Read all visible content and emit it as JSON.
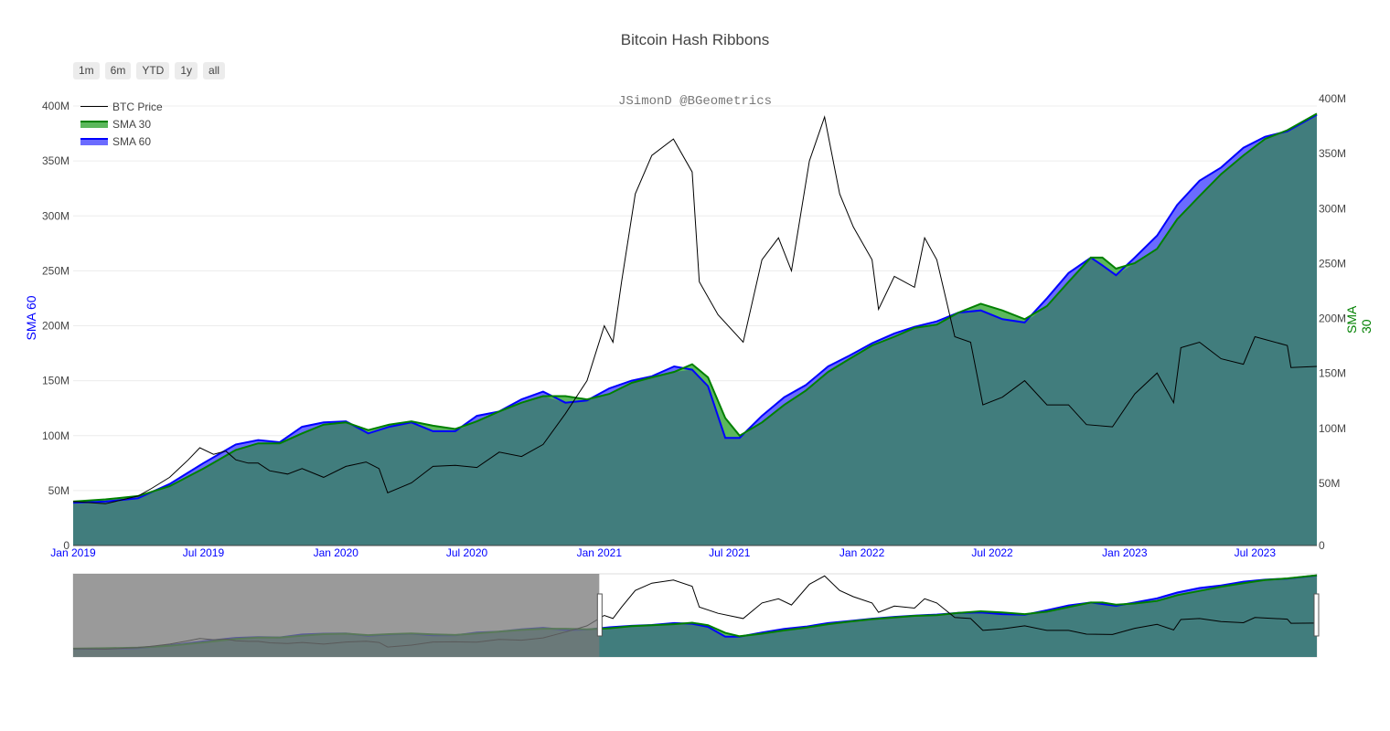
{
  "title": "Bitcoin Hash Ribbons",
  "watermark": "JSimonD @BGeometrics",
  "range_buttons": [
    "1m",
    "6m",
    "YTD",
    "1y",
    "all"
  ],
  "legend": [
    {
      "name": "BTC Price",
      "color": "#000000"
    },
    {
      "name": "SMA 30",
      "color": "#008000"
    },
    {
      "name": "SMA 60",
      "color": "#0000ff"
    }
  ],
  "colors": {
    "area_fill": "#417d7d",
    "sma30_line": "#008000",
    "sma60_line": "#0000ff",
    "sma30_ribbon": "#5cb85c",
    "sma60_ribbon": "#6b6bff",
    "price_line": "#000000",
    "x_tick": "#0000ff",
    "y_tick": "#444444"
  },
  "chart_data": {
    "type": "area",
    "title": "Bitcoin Hash Ribbons",
    "x_range": [
      "2019-01-01",
      "2023-09-25"
    ],
    "x_ticks": [
      "Jan 2019",
      "Jul 2019",
      "Jan 2020",
      "Jul 2020",
      "Jan 2021",
      "Jul 2021",
      "Jan 2022",
      "Jul 2022",
      "Jan 2023",
      "Jul 2023"
    ],
    "y_left": {
      "label": "SMA 60",
      "range": [
        0,
        400000000
      ],
      "ticks": [
        "0",
        "50M",
        "100M",
        "150M",
        "200M",
        "250M",
        "300M",
        "350M",
        "400M"
      ]
    },
    "y_right": {
      "label": "SMA 30",
      "range": [
        0,
        400000000
      ],
      "ticks": [
        "0",
        "50M",
        "100M",
        "150M",
        "200M",
        "250M",
        "300M",
        "350M",
        "400M"
      ]
    },
    "grid": true,
    "legend_position": "top-left",
    "rangeslider": {
      "visible": true,
      "selected": [
        "2021-01-01",
        "2023-09-25"
      ]
    },
    "series": [
      {
        "name": "SMA 30",
        "axis": "right",
        "points": [
          [
            "2019-01-01",
            40000000
          ],
          [
            "2019-02-15",
            42000000
          ],
          [
            "2019-04-01",
            45000000
          ],
          [
            "2019-05-15",
            54000000
          ],
          [
            "2019-07-01",
            70000000
          ],
          [
            "2019-08-15",
            87000000
          ],
          [
            "2019-09-15",
            93000000
          ],
          [
            "2019-10-15",
            93000000
          ],
          [
            "2019-11-15",
            102000000
          ],
          [
            "2019-12-15",
            110000000
          ],
          [
            "2020-01-15",
            112000000
          ],
          [
            "2020-02-15",
            105000000
          ],
          [
            "2020-03-15",
            110000000
          ],
          [
            "2020-04-15",
            113000000
          ],
          [
            "2020-05-15",
            109000000
          ],
          [
            "2020-06-15",
            106000000
          ],
          [
            "2020-07-15",
            113000000
          ],
          [
            "2020-08-15",
            122000000
          ],
          [
            "2020-09-15",
            130000000
          ],
          [
            "2020-10-15",
            136000000
          ],
          [
            "2020-11-15",
            136000000
          ],
          [
            "2020-12-15",
            133000000
          ],
          [
            "2021-01-15",
            138000000
          ],
          [
            "2021-02-15",
            148000000
          ],
          [
            "2021-03-15",
            153000000
          ],
          [
            "2021-04-15",
            158000000
          ],
          [
            "2021-05-10",
            165000000
          ],
          [
            "2021-06-01",
            153000000
          ],
          [
            "2021-06-25",
            116000000
          ],
          [
            "2021-07-15",
            100000000
          ],
          [
            "2021-08-15",
            112000000
          ],
          [
            "2021-09-15",
            128000000
          ],
          [
            "2021-10-15",
            141000000
          ],
          [
            "2021-11-15",
            158000000
          ],
          [
            "2021-12-15",
            170000000
          ],
          [
            "2022-01-15",
            182000000
          ],
          [
            "2022-02-15",
            190000000
          ],
          [
            "2022-03-15",
            198000000
          ],
          [
            "2022-04-15",
            201000000
          ],
          [
            "2022-05-15",
            212000000
          ],
          [
            "2022-06-15",
            220000000
          ],
          [
            "2022-07-15",
            214000000
          ],
          [
            "2022-08-15",
            206000000
          ],
          [
            "2022-09-15",
            218000000
          ],
          [
            "2022-10-15",
            240000000
          ],
          [
            "2022-11-15",
            262000000
          ],
          [
            "2022-12-01",
            262000000
          ],
          [
            "2022-12-20",
            252000000
          ],
          [
            "2023-01-15",
            257000000
          ],
          [
            "2023-02-15",
            270000000
          ],
          [
            "2023-03-15",
            297000000
          ],
          [
            "2023-04-15",
            318000000
          ],
          [
            "2023-05-15",
            338000000
          ],
          [
            "2023-06-15",
            355000000
          ],
          [
            "2023-07-15",
            370000000
          ],
          [
            "2023-08-15",
            378000000
          ],
          [
            "2023-09-25",
            393000000
          ]
        ]
      },
      {
        "name": "SMA 60",
        "axis": "left",
        "points": [
          [
            "2019-01-01",
            39000000
          ],
          [
            "2019-02-15",
            40000000
          ],
          [
            "2019-04-01",
            43000000
          ],
          [
            "2019-05-15",
            56000000
          ],
          [
            "2019-07-01",
            75000000
          ],
          [
            "2019-08-15",
            92000000
          ],
          [
            "2019-09-15",
            96000000
          ],
          [
            "2019-10-15",
            94000000
          ],
          [
            "2019-11-15",
            108000000
          ],
          [
            "2019-12-15",
            112000000
          ],
          [
            "2020-01-15",
            113000000
          ],
          [
            "2020-02-15",
            102000000
          ],
          [
            "2020-03-15",
            108000000
          ],
          [
            "2020-04-15",
            112000000
          ],
          [
            "2020-05-15",
            104000000
          ],
          [
            "2020-06-15",
            104000000
          ],
          [
            "2020-07-15",
            118000000
          ],
          [
            "2020-08-15",
            122000000
          ],
          [
            "2020-09-15",
            133000000
          ],
          [
            "2020-10-15",
            140000000
          ],
          [
            "2020-11-15",
            130000000
          ],
          [
            "2020-12-15",
            132000000
          ],
          [
            "2021-01-15",
            143000000
          ],
          [
            "2021-02-15",
            150000000
          ],
          [
            "2021-03-15",
            154000000
          ],
          [
            "2021-04-15",
            163000000
          ],
          [
            "2021-05-10",
            160000000
          ],
          [
            "2021-06-01",
            145000000
          ],
          [
            "2021-06-25",
            98000000
          ],
          [
            "2021-07-15",
            98000000
          ],
          [
            "2021-08-15",
            118000000
          ],
          [
            "2021-09-15",
            135000000
          ],
          [
            "2021-10-15",
            146000000
          ],
          [
            "2021-11-15",
            163000000
          ],
          [
            "2021-12-15",
            173000000
          ],
          [
            "2022-01-15",
            184000000
          ],
          [
            "2022-02-15",
            193000000
          ],
          [
            "2022-03-15",
            199000000
          ],
          [
            "2022-04-15",
            204000000
          ],
          [
            "2022-05-15",
            212000000
          ],
          [
            "2022-06-15",
            214000000
          ],
          [
            "2022-07-15",
            206000000
          ],
          [
            "2022-08-15",
            203000000
          ],
          [
            "2022-09-15",
            225000000
          ],
          [
            "2022-10-15",
            248000000
          ],
          [
            "2022-11-15",
            262000000
          ],
          [
            "2022-12-01",
            255000000
          ],
          [
            "2022-12-20",
            246000000
          ],
          [
            "2023-01-15",
            262000000
          ],
          [
            "2023-02-15",
            282000000
          ],
          [
            "2023-03-15",
            310000000
          ],
          [
            "2023-04-15",
            332000000
          ],
          [
            "2023-05-15",
            344000000
          ],
          [
            "2023-06-15",
            362000000
          ],
          [
            "2023-07-15",
            372000000
          ],
          [
            "2023-08-15",
            377000000
          ],
          [
            "2023-09-25",
            392000000
          ]
        ]
      },
      {
        "name": "BTC Price",
        "axis": "left",
        "points": [
          [
            "2019-01-01",
            40000000
          ],
          [
            "2019-02-15",
            38000000
          ],
          [
            "2019-04-01",
            45000000
          ],
          [
            "2019-04-20",
            52000000
          ],
          [
            "2019-05-15",
            62000000
          ],
          [
            "2019-06-10",
            78000000
          ],
          [
            "2019-06-26",
            89000000
          ],
          [
            "2019-07-15",
            83000000
          ],
          [
            "2019-08-01",
            86000000
          ],
          [
            "2019-08-15",
            78000000
          ],
          [
            "2019-09-01",
            75000000
          ],
          [
            "2019-09-15",
            75000000
          ],
          [
            "2019-10-01",
            68000000
          ],
          [
            "2019-10-26",
            65000000
          ],
          [
            "2019-11-15",
            70000000
          ],
          [
            "2019-12-15",
            62000000
          ],
          [
            "2020-01-15",
            72000000
          ],
          [
            "2020-02-12",
            76000000
          ],
          [
            "2020-03-01",
            70000000
          ],
          [
            "2020-03-13",
            48000000
          ],
          [
            "2020-04-15",
            57000000
          ],
          [
            "2020-05-15",
            72000000
          ],
          [
            "2020-06-15",
            73000000
          ],
          [
            "2020-07-15",
            71000000
          ],
          [
            "2020-08-15",
            85000000
          ],
          [
            "2020-09-15",
            81000000
          ],
          [
            "2020-10-15",
            92000000
          ],
          [
            "2020-11-15",
            120000000
          ],
          [
            "2020-12-15",
            150000000
          ],
          [
            "2021-01-08",
            200000000
          ],
          [
            "2021-01-20",
            185000000
          ],
          [
            "2021-02-01",
            240000000
          ],
          [
            "2021-02-20",
            320000000
          ],
          [
            "2021-03-15",
            355000000
          ],
          [
            "2021-04-14",
            370000000
          ],
          [
            "2021-05-10",
            340000000
          ],
          [
            "2021-05-20",
            240000000
          ],
          [
            "2021-06-15",
            210000000
          ],
          [
            "2021-07-20",
            185000000
          ],
          [
            "2021-08-15",
            260000000
          ],
          [
            "2021-09-07",
            280000000
          ],
          [
            "2021-09-25",
            250000000
          ],
          [
            "2021-10-20",
            350000000
          ],
          [
            "2021-11-10",
            390000000
          ],
          [
            "2021-12-01",
            320000000
          ],
          [
            "2021-12-20",
            290000000
          ],
          [
            "2022-01-15",
            260000000
          ],
          [
            "2022-01-24",
            215000000
          ],
          [
            "2022-02-15",
            245000000
          ],
          [
            "2022-03-15",
            235000000
          ],
          [
            "2022-03-29",
            280000000
          ],
          [
            "2022-04-15",
            260000000
          ],
          [
            "2022-05-10",
            190000000
          ],
          [
            "2022-06-01",
            185000000
          ],
          [
            "2022-06-18",
            128000000
          ],
          [
            "2022-07-15",
            135000000
          ],
          [
            "2022-08-15",
            150000000
          ],
          [
            "2022-09-15",
            128000000
          ],
          [
            "2022-10-15",
            128000000
          ],
          [
            "2022-11-09",
            110000000
          ],
          [
            "2022-12-15",
            108000000
          ],
          [
            "2023-01-15",
            138000000
          ],
          [
            "2023-02-15",
            157000000
          ],
          [
            "2023-03-10",
            130000000
          ],
          [
            "2023-03-20",
            180000000
          ],
          [
            "2023-04-15",
            185000000
          ],
          [
            "2023-05-15",
            170000000
          ],
          [
            "2023-06-15",
            165000000
          ],
          [
            "2023-07-01",
            190000000
          ],
          [
            "2023-08-15",
            182000000
          ],
          [
            "2023-08-20",
            162000000
          ],
          [
            "2023-09-25",
            163000000
          ]
        ]
      }
    ]
  }
}
